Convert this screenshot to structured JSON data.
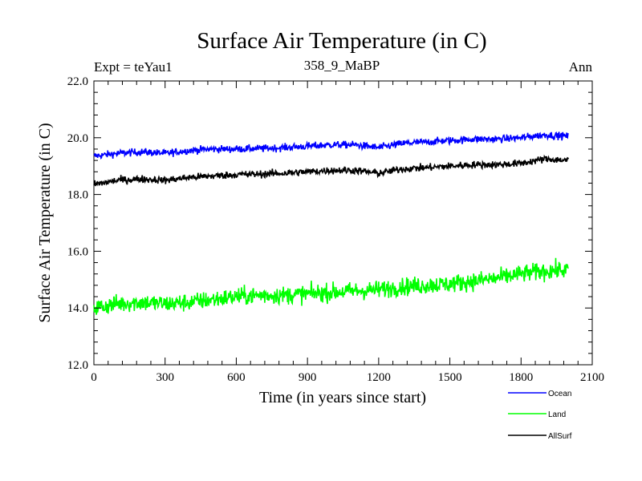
{
  "chart_data": {
    "type": "line",
    "title": "Surface Air Temperature (in C)",
    "subtitle": "358_9_MaBP",
    "annotation_left": "Expt = teYau1",
    "annotation_right": "Ann",
    "xlabel": "Time (in years since start)",
    "ylabel": "Surface Air Temperature (in C)",
    "xlim": [
      0,
      2100
    ],
    "ylim": [
      12,
      22
    ],
    "x_ticks": [
      0,
      300,
      600,
      900,
      1200,
      1500,
      1800,
      2100
    ],
    "x_tick_labels": [
      "0",
      "300",
      "600",
      "900",
      "1200",
      "1500",
      "1800",
      "2100"
    ],
    "y_ticks": [
      12,
      14,
      16,
      18,
      20,
      22
    ],
    "y_tick_labels": [
      "12.0",
      "14.0",
      "16.0",
      "18.0",
      "20.0",
      "22.0"
    ],
    "grid": false,
    "legend_position": "bottom-right",
    "series": [
      {
        "name": "Ocean",
        "color": "#0000ff",
        "x": [
          0,
          100,
          200,
          300,
          400,
          500,
          600,
          700,
          800,
          900,
          1000,
          1100,
          1200,
          1300,
          1400,
          1500,
          1600,
          1700,
          1800,
          1900,
          2000
        ],
        "values": [
          19.35,
          19.45,
          19.5,
          19.45,
          19.55,
          19.6,
          19.6,
          19.62,
          19.65,
          19.7,
          19.75,
          19.75,
          19.65,
          19.8,
          19.85,
          19.9,
          19.95,
          19.95,
          20.0,
          20.1,
          20.05
        ]
      },
      {
        "name": "Land",
        "color": "#00ff00",
        "x": [
          0,
          100,
          200,
          300,
          400,
          500,
          600,
          700,
          800,
          900,
          1000,
          1100,
          1200,
          1300,
          1400,
          1500,
          1600,
          1700,
          1800,
          1900,
          2000
        ],
        "values": [
          14.0,
          14.15,
          14.2,
          14.15,
          14.2,
          14.3,
          14.4,
          14.45,
          14.45,
          14.5,
          14.55,
          14.6,
          14.65,
          14.75,
          14.8,
          14.85,
          14.95,
          15.05,
          15.2,
          15.3,
          15.35
        ]
      },
      {
        "name": "AllSurf",
        "color": "#000000",
        "x": [
          0,
          100,
          200,
          300,
          400,
          500,
          600,
          700,
          800,
          900,
          1000,
          1100,
          1200,
          1300,
          1400,
          1500,
          1600,
          1700,
          1800,
          1900,
          2000
        ],
        "values": [
          18.35,
          18.5,
          18.55,
          18.5,
          18.6,
          18.65,
          18.7,
          18.72,
          18.75,
          18.8,
          18.85,
          18.85,
          18.75,
          18.9,
          18.95,
          19.0,
          19.05,
          19.05,
          19.1,
          19.25,
          19.2
        ]
      }
    ]
  }
}
